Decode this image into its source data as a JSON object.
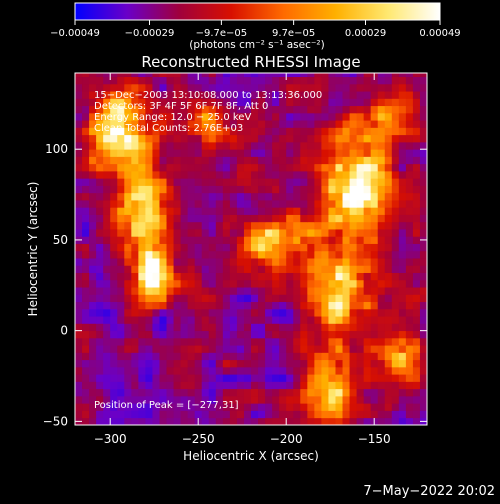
{
  "chart_data": {
    "type": "heatmap",
    "title": "Reconstructed RHESSI Image",
    "xlabel": "Heliocentric X (arcsec)",
    "ylabel": "Heliocentric Y (arcsec)",
    "xlim": [
      -320,
      -120
    ],
    "ylim": [
      -52,
      142
    ],
    "x_ticks": [
      {
        "value": -300,
        "label": "−300"
      },
      {
        "value": -250,
        "label": "−250"
      },
      {
        "value": -200,
        "label": "−200"
      },
      {
        "value": -150,
        "label": "−150"
      }
    ],
    "y_ticks": [
      {
        "value": -50,
        "label": "−50"
      },
      {
        "value": 0,
        "label": "0"
      },
      {
        "value": 50,
        "label": "50"
      },
      {
        "value": 100,
        "label": "100"
      }
    ],
    "colorbar": {
      "range": [
        -0.00049,
        0.00049
      ],
      "ticks": [
        {
          "value": -0.00049,
          "label": "−0.00049"
        },
        {
          "value": -0.00029,
          "label": "−0.00029"
        },
        {
          "value": -9.7e-05,
          "label": "−9.7e−05"
        },
        {
          "value": 9.7e-05,
          "label": "9.7e−05"
        },
        {
          "value": 0.00029,
          "label": "0.00029"
        },
        {
          "value": 0.00049,
          "label": "0.00049"
        }
      ],
      "units": "(photons cm⁻² s⁻¹ asec⁻²)",
      "colors": [
        "#0000ff",
        "#6a00c8",
        "#a0003c",
        "#d81000",
        "#ff6a00",
        "#ffb000",
        "#ffe870",
        "#ffffff"
      ]
    },
    "info_lines": [
      "15−Dec−2003 13:10:08.000 to 13:13:36.000",
      "Detectors: 3F 4F 5F 6F 7F 8F, Att 0",
      "Energy Range: 12.0 − 25.0 keV",
      "Clean    Total Counts: 2.76E+03"
    ],
    "peak_label": "Position of Peak = [−277,31]",
    "peak": [
      -277,
      31
    ],
    "sources": [
      {
        "x": -295,
        "y": 110,
        "sx": 18,
        "sy": 22,
        "amp": 1.0
      },
      {
        "x": -280,
        "y": 62,
        "sx": 16,
        "sy": 26,
        "amp": 0.9
      },
      {
        "x": -275,
        "y": 30,
        "sx": 12,
        "sy": 14,
        "amp": 1.05
      },
      {
        "x": -245,
        "y": 115,
        "sx": 14,
        "sy": 12,
        "amp": 0.6
      },
      {
        "x": -205,
        "y": 50,
        "sx": 22,
        "sy": 14,
        "amp": 0.7
      },
      {
        "x": -160,
        "y": 80,
        "sx": 22,
        "sy": 30,
        "amp": 0.95
      },
      {
        "x": -170,
        "y": 20,
        "sx": 18,
        "sy": 22,
        "amp": 0.85
      },
      {
        "x": -175,
        "y": -30,
        "sx": 14,
        "sy": 18,
        "amp": 0.9
      },
      {
        "x": -140,
        "y": 120,
        "sx": 12,
        "sy": 12,
        "amp": 0.55
      },
      {
        "x": -135,
        "y": -15,
        "sx": 12,
        "sy": 20,
        "amp": 0.6
      }
    ]
  },
  "footer": {
    "timestamp": "7−May−2022 20:02"
  }
}
